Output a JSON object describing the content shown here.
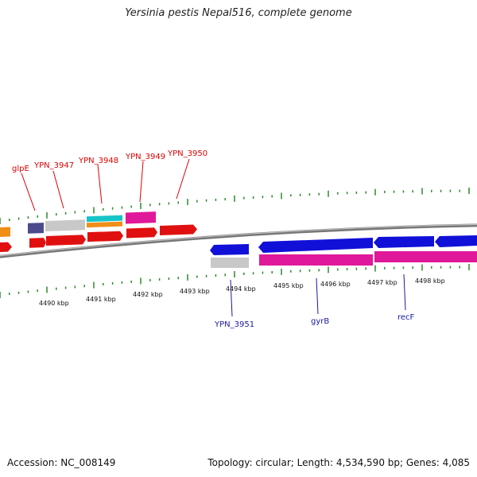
{
  "title": "Yersinia pestis Nepal516, complete genome",
  "footer": {
    "accession": "Accession: NC_008149",
    "summary": "Topology: circular; Length: 4,534,590 bp; Genes: 4,085"
  },
  "colors": {
    "backbone": "#888888",
    "tick": "#2a8a2a",
    "top_strand_labels": "#dd0000",
    "bottom_strand_labels": "#1a1aa0"
  },
  "scale_labels": [
    "4490 kbp",
    "4491 kbp",
    "4492 kbp",
    "4493 kbp",
    "4494 kbp",
    "4495 kbp",
    "4496 kbp",
    "4497 kbp",
    "4498 kbp"
  ],
  "gene_labels_top": [
    "glpE",
    "YPN_3947",
    "YPN_3948",
    "YPN_3949",
    "YPN_3950"
  ],
  "gene_labels_bottom": [
    "YPN_3951",
    "gyrB",
    "recF"
  ],
  "features": [
    {
      "name": "orange-feature-edge",
      "color": "#ef8f18"
    },
    {
      "name": "glpe-feature",
      "color": "#4a4a8c"
    },
    {
      "name": "ypn-3947-feature",
      "color": "#c8c8c8"
    },
    {
      "name": "ypn-3948-feature-cyan",
      "color": "#16c4c8"
    },
    {
      "name": "ypn-3948-feature-orange",
      "color": "#ef8f18"
    },
    {
      "name": "ypn-3949-feature",
      "color": "#e0189a"
    },
    {
      "name": "red-cds",
      "color": "#e01010"
    },
    {
      "name": "ypn-3951-cds",
      "color": "#1010d8"
    },
    {
      "name": "ypn-3951-feature",
      "color": "#c8c8c8"
    },
    {
      "name": "gyrb-cds",
      "color": "#1010d8"
    },
    {
      "name": "gyrb-feature",
      "color": "#e0189a"
    }
  ]
}
